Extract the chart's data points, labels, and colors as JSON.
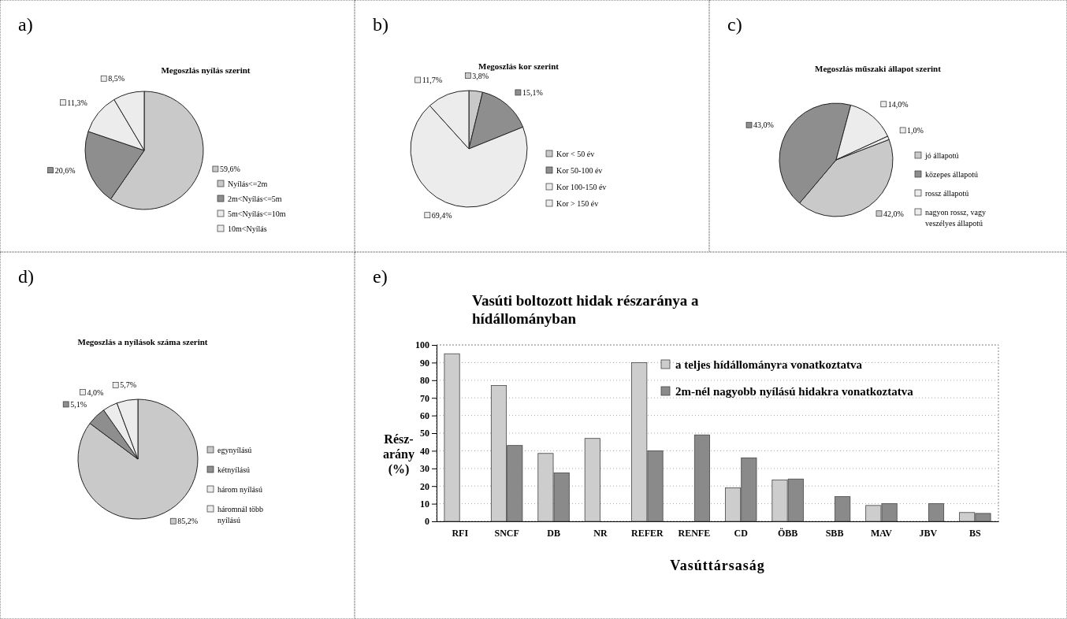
{
  "chart_data": [
    {
      "type": "pie",
      "title": "Megoszlás nyílás szerint",
      "annotations": [
        "a)"
      ],
      "legend": "right",
      "categories": [
        "Nyílás<=2m",
        "2m<Nyílás<=5m",
        "5m<Nyílás<=10m",
        "10m<Nyílás"
      ],
      "values": [
        59.6,
        20.6,
        11.3,
        8.5
      ],
      "value_labels": [
        "59,6%",
        "20,6%",
        "11,3%",
        "8,5%"
      ],
      "colors": [
        "#c9c9c9",
        "#8e8e8e",
        "#ececec",
        "#ececec"
      ]
    },
    {
      "type": "pie",
      "title": "Megoszlás kor szerint",
      "annotations": [
        "b)"
      ],
      "legend": "right",
      "categories": [
        "Kor < 50 év",
        "Kor 50-100 év",
        "Kor 100-150 év",
        "Kor > 150 év"
      ],
      "values": [
        3.8,
        15.1,
        69.4,
        11.7
      ],
      "value_labels": [
        "3,8%",
        "15,1%",
        "69,4%",
        "11,7%"
      ],
      "colors": [
        "#c9c9c9",
        "#8e8e8e",
        "#ececec",
        "#ececec"
      ]
    },
    {
      "type": "pie",
      "title": "Megoszlás műszaki állapot szerint",
      "annotations": [
        "c)"
      ],
      "legend": "right",
      "categories": [
        "jó állapotú",
        "közepes állapotú",
        "rossz állapotú",
        "nagyon rossz, vagy veszélyes állapotú"
      ],
      "values": [
        42.0,
        43.0,
        14.0,
        1.0
      ],
      "value_labels": [
        "42,0%",
        "43,0%",
        "14,0%",
        "1,0%"
      ],
      "colors": [
        "#c9c9c9",
        "#8e8e8e",
        "#ececec",
        "#ececec"
      ]
    },
    {
      "type": "pie",
      "title": "Megoszlás a  nyílások száma szerint",
      "annotations": [
        "d)"
      ],
      "legend": "right",
      "categories": [
        "egynyílású",
        "kétnyílású",
        "három nyílású",
        "háromnál több nyílású"
      ],
      "values": [
        85.2,
        5.1,
        4.0,
        5.7
      ],
      "value_labels": [
        "85,2%",
        "5,1%",
        "4,0%",
        "5,7%"
      ],
      "colors": [
        "#c9c9c9",
        "#8e8e8e",
        "#ececec",
        "#ececec"
      ]
    },
    {
      "type": "bar",
      "title": "Vasúti boltozott hidak részaránya a hídállományban",
      "annotations": [
        "e)"
      ],
      "xlabel": "Vasúttársaság",
      "ylabel": "Rész- arány (%)",
      "legend": "top right",
      "grid": "y",
      "ylim": [
        0,
        100
      ],
      "yticks": [
        0,
        10,
        20,
        30,
        40,
        50,
        60,
        70,
        80,
        90,
        100
      ],
      "categories": [
        "RFI",
        "SNCF",
        "DB",
        "NR",
        "REFER",
        "RENFE",
        "CD",
        "ÖBB",
        "SBB",
        "MAV",
        "JBV",
        "BS"
      ],
      "series": [
        {
          "name": "a teljes hídállományra vonatkoztatva",
          "color": "#cdcdcd",
          "values": [
            95,
            77,
            38.5,
            47,
            90,
            null,
            19,
            23.5,
            null,
            9,
            null,
            5
          ]
        },
        {
          "name": "2m-nél nagyobb nyílású hidakra vonatkoztatva",
          "color": "#8a8a8a",
          "values": [
            null,
            43,
            27.5,
            null,
            40,
            49,
            36,
            24,
            14,
            10,
            10,
            4.5
          ]
        }
      ]
    }
  ]
}
